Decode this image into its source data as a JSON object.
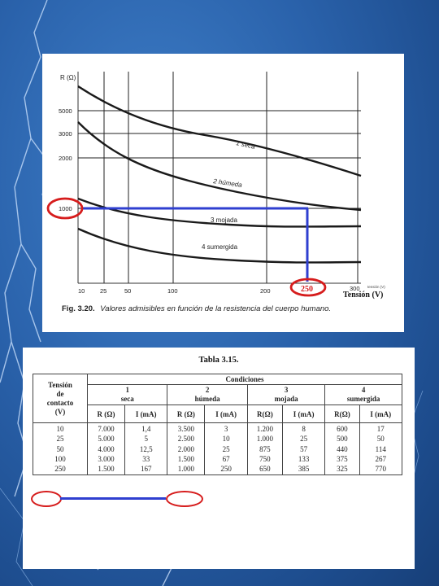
{
  "figure": {
    "y_axis_label": "R (Ω)",
    "x_axis_label": "Tensión (V)",
    "x_axis_small_label": "tensión (V)",
    "y_ticks": [
      "5000",
      "3000",
      "2000",
      "1000"
    ],
    "x_ticks": [
      "10",
      "25",
      "50",
      "100",
      "200",
      "300"
    ],
    "curve_labels": [
      "1 seca",
      "2 húmeda",
      "3 mojada",
      "4 sumergida"
    ],
    "highlight_y": "1000",
    "highlight_x": "250",
    "caption_number": "Fig. 3.20.",
    "caption_text": "Valores admisibles en función de la resistencia del cuerpo humano."
  },
  "table": {
    "title": "Tabla 3.15.",
    "header_tension": [
      "Tensión",
      "de",
      "contacto",
      "(V)"
    ],
    "header_conditions": "Condiciones",
    "conditions": [
      {
        "number": "1",
        "name": "seca"
      },
      {
        "number": "2",
        "name": "húmeda"
      },
      {
        "number": "3",
        "name": "mojada"
      },
      {
        "number": "4",
        "name": "sumergida"
      }
    ],
    "sub_headers": [
      "R (Ω)",
      "I (mA)",
      "R (Ω)",
      "I (mA)",
      "R(Ω)",
      "I (mA)",
      "R(Ω)",
      "I (mA)"
    ],
    "tension_values": [
      "10",
      "25",
      "50",
      "100",
      "250"
    ],
    "columns": [
      [
        "7.000",
        "5.000",
        "4.000",
        "3.000",
        "1.500"
      ],
      [
        "1,4",
        "5",
        "12,5",
        "33",
        "167"
      ],
      [
        "3.500",
        "2.500",
        "2.000",
        "1.500",
        "1.000"
      ],
      [
        "3",
        "10",
        "25",
        "67",
        "250"
      ],
      [
        "1.200",
        "1.000",
        "875",
        "750",
        "650"
      ],
      [
        "8",
        "25",
        "57",
        "133",
        "385"
      ],
      [
        "600",
        "500",
        "440",
        "375",
        "325"
      ],
      [
        "17",
        "50",
        "114",
        "267",
        "770"
      ]
    ]
  },
  "colors": {
    "background": "#2a62ab",
    "highlight_ring": "#d61c1c",
    "highlight_line": "#2f3fd0"
  }
}
